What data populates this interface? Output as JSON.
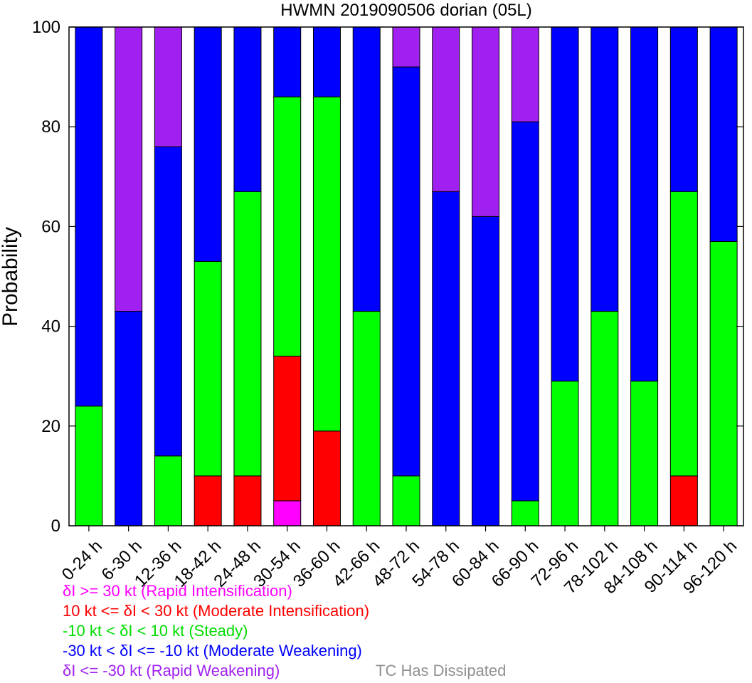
{
  "chart_data": {
    "type": "bar",
    "stacked": true,
    "title": "HWMN 2019090506 dorian (05L)",
    "ylabel": "Probability",
    "xlabel": "",
    "ylim": [
      0,
      100
    ],
    "yticks": [
      "0",
      "20",
      "40",
      "60",
      "80",
      "100"
    ],
    "grid": false,
    "categories": [
      "0-24 h",
      "6-30 h",
      "12-36 h",
      "18-42 h",
      "24-48 h",
      "30-54 h",
      "36-60 h",
      "42-66 h",
      "48-72 h",
      "54-78 h",
      "60-84 h",
      "66-90 h",
      "72-96 h",
      "78-102 h",
      "84-108 h",
      "90-114 h",
      "96-120 h"
    ],
    "series": [
      {
        "key": "ri",
        "color": "#ff00ff",
        "values": [
          0,
          0,
          0,
          0,
          0,
          5,
          0,
          0,
          0,
          0,
          0,
          0,
          0,
          0,
          0,
          0,
          0
        ]
      },
      {
        "key": "mi",
        "color": "#ff0000",
        "values": [
          0,
          0,
          0,
          10,
          10,
          29,
          19,
          0,
          0,
          0,
          0,
          0,
          0,
          0,
          0,
          10,
          0
        ]
      },
      {
        "key": "st",
        "color": "#00ff00",
        "values": [
          24,
          0,
          14,
          43,
          57,
          52,
          67,
          43,
          10,
          0,
          0,
          5,
          29,
          43,
          29,
          57,
          57
        ]
      },
      {
        "key": "mw",
        "color": "#0000ff",
        "values": [
          76,
          43,
          62,
          47,
          33,
          14,
          14,
          57,
          82,
          67,
          62,
          76,
          71,
          57,
          71,
          33,
          43
        ]
      },
      {
        "key": "rw",
        "color": "#a020f0",
        "values": [
          0,
          57,
          24,
          0,
          0,
          0,
          0,
          0,
          8,
          33,
          38,
          19,
          0,
          0,
          0,
          0,
          0
        ]
      }
    ],
    "legend": [
      {
        "text": "δI >= 30 kt (Rapid Intensification)",
        "color": "#ff00ff"
      },
      {
        "text": "10 kt <= δI < 30 kt (Moderate Intensification)",
        "color": "#ff0000"
      },
      {
        "text": "-10 kt < δI < 10 kt (Steady)",
        "color": "#00dd00"
      },
      {
        "text": "-30 kt < δI <= -10 kt (Moderate Weakening)",
        "color": "#0000ff"
      },
      {
        "text": "δI <= -30 kt (Rapid Weakening)",
        "color": "#a020f0"
      }
    ],
    "dissipated_label": {
      "text": "TC Has Dissipated",
      "color": "#909090"
    },
    "legend_placement": "bottom-left"
  }
}
